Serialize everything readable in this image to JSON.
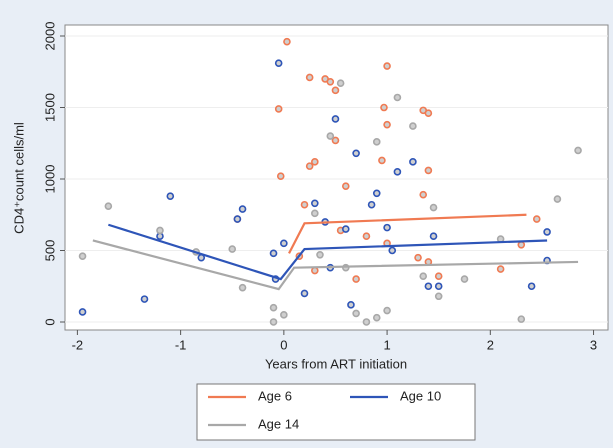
{
  "chart_data": {
    "type": "scatter",
    "ylabel": "CD4⁺count cells/ml",
    "xlabel": "Years from ART initiation",
    "xlim": [
      -2.12,
      3.14
    ],
    "ylim": [
      -56,
      2077
    ],
    "xticks": [
      -2,
      -1,
      0,
      1,
      2,
      3
    ],
    "yticks": [
      0,
      500,
      1000,
      1500,
      2000
    ],
    "grid": true,
    "series": [
      {
        "name": "Age 6",
        "color": "#f07a52",
        "x": [
          0.03,
          -0.05,
          -0.03,
          0.25,
          0.4,
          0.45,
          0.5,
          1.0,
          0.97,
          1.0,
          1.35,
          1.4,
          0.3,
          0.25,
          0.5,
          0.95,
          1.4,
          0.6,
          1.35,
          0.2,
          0.55,
          0.8,
          1.0,
          1.4,
          1.5,
          2.1,
          2.3,
          2.45,
          -0.45,
          0.3,
          0.7,
          1.3,
          0.15
        ],
        "values": [
          1960,
          1490,
          1020,
          1710,
          1700,
          1680,
          1620,
          1790,
          1500,
          1380,
          1480,
          1460,
          1120,
          1090,
          1270,
          1130,
          1060,
          950,
          890,
          820,
          640,
          600,
          550,
          420,
          320,
          370,
          540,
          720,
          720,
          360,
          300,
          450,
          460
        ],
        "fit_x": [
          0.05,
          0.2,
          2.35
        ],
        "fit_values": [
          480,
          690,
          750
        ]
      },
      {
        "name": "Age 10",
        "color": "#2e55b8",
        "x": [
          -1.95,
          -1.35,
          -1.1,
          -1.2,
          -0.8,
          -0.45,
          -0.4,
          -0.05,
          0.0,
          -0.1,
          -0.08,
          0.5,
          0.7,
          0.9,
          1.1,
          1.25,
          0.4,
          0.3,
          0.6,
          0.85,
          1.0,
          1.45,
          1.4,
          1.5,
          2.4,
          2.55,
          2.55,
          0.65,
          0.2,
          1.05,
          0.45
        ],
        "values": [
          70,
          160,
          880,
          600,
          450,
          720,
          790,
          1810,
          550,
          480,
          300,
          1420,
          1180,
          900,
          1050,
          1120,
          700,
          830,
          650,
          820,
          660,
          600,
          250,
          250,
          250,
          630,
          430,
          120,
          200,
          500,
          380
        ],
        "fit_x": [
          -1.7,
          -0.03,
          0.2,
          2.55
        ],
        "fit_values": [
          680,
          300,
          510,
          570
        ]
      },
      {
        "name": "Age 14",
        "color": "#a8a8a8",
        "x": [
          -1.95,
          -1.7,
          -1.2,
          -0.85,
          -0.5,
          -0.4,
          -0.1,
          -0.1,
          0.0,
          0.45,
          0.55,
          1.1,
          1.25,
          0.9,
          0.3,
          0.6,
          0.7,
          0.8,
          0.9,
          1.0,
          1.35,
          1.5,
          1.75,
          2.1,
          2.65,
          2.85,
          2.3,
          1.45,
          0.35
        ],
        "values": [
          460,
          810,
          640,
          490,
          510,
          240,
          0,
          100,
          50,
          1300,
          1670,
          1570,
          1370,
          1260,
          760,
          380,
          60,
          0,
          30,
          80,
          320,
          180,
          300,
          580,
          860,
          1200,
          20,
          800,
          470
        ],
        "fit_x": [
          -1.85,
          -0.05,
          0.1,
          2.85
        ],
        "fit_values": [
          570,
          230,
          380,
          420
        ]
      }
    ]
  }
}
